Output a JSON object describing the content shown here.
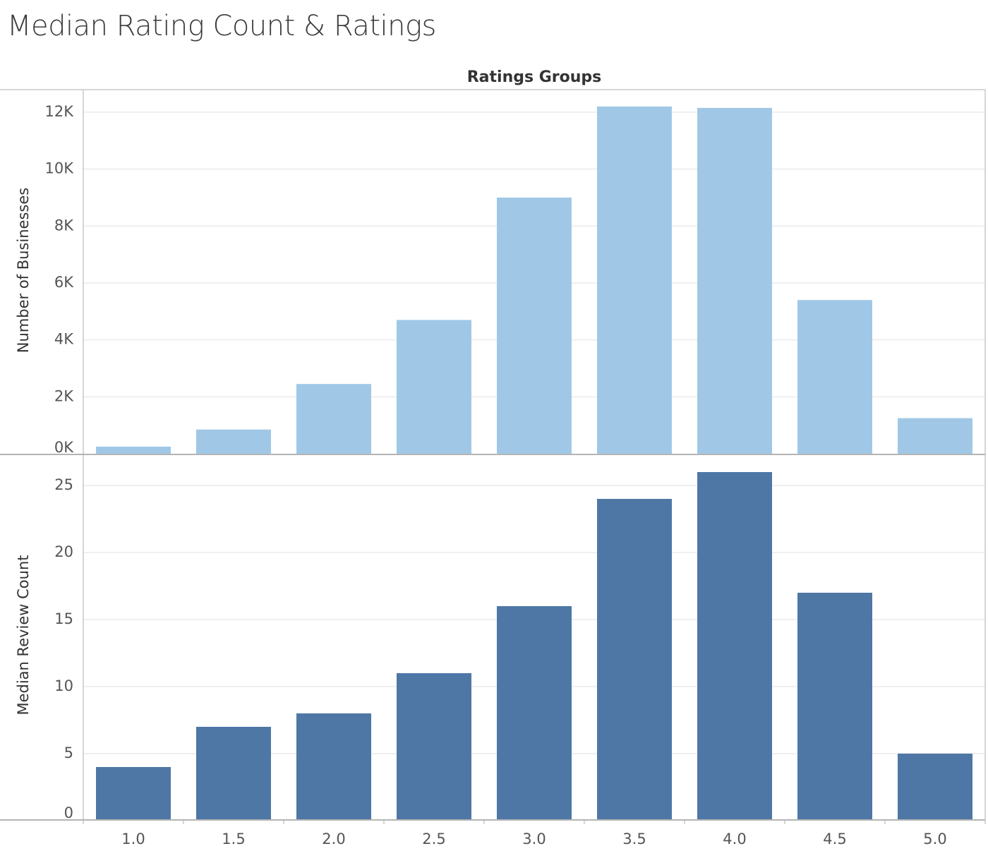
{
  "page": {
    "title": "Median Rating Count & Ratings"
  },
  "chart_data": {
    "type": "bar",
    "title": "Median Rating Count & Ratings",
    "column_header": "Ratings Groups",
    "categories": [
      "1.0",
      "1.5",
      "2.0",
      "2.5",
      "3.0",
      "3.5",
      "4.0",
      "4.5",
      "5.0"
    ],
    "grid": true,
    "panels": [
      {
        "ylabel": "Number of Businesses",
        "ylim": [
          0,
          12000
        ],
        "ytick_values": [
          0,
          2000,
          4000,
          6000,
          8000,
          10000,
          12000
        ],
        "ytick_labels": [
          "0K",
          "2K",
          "4K",
          "6K",
          "8K",
          "10K",
          "12K"
        ],
        "color": "#a0c8e6",
        "series": [
          {
            "values": [
              250,
              850,
              2450,
              4700,
              9000,
              12200,
              12150,
              5400,
              1250
            ]
          }
        ]
      },
      {
        "ylabel": "Median Review Count",
        "ylim": [
          0,
          25
        ],
        "ytick_values": [
          0,
          5,
          10,
          15,
          20,
          25
        ],
        "ytick_labels": [
          "0",
          "5",
          "10",
          "15",
          "20",
          "25"
        ],
        "color": "#4e77a5",
        "series": [
          {
            "values": [
              4,
              7,
              8,
              11,
              16,
              24,
              26,
              17,
              5
            ]
          }
        ]
      }
    ]
  }
}
